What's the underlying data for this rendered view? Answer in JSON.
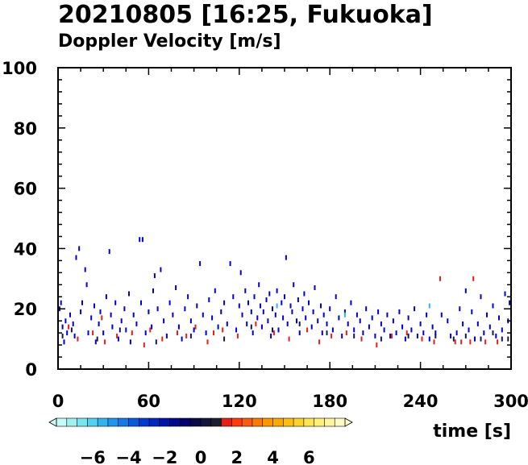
{
  "chart_data": {
    "type": "scatter",
    "title": "20210805 [16:25, Fukuoka]",
    "subtitle": "Doppler Velocity [m/s]",
    "xlabel": "time [s]",
    "ylabel": "",
    "xlim": [
      0,
      300
    ],
    "ylim": [
      0,
      100
    ],
    "x_ticks": [
      "0",
      "60",
      "120",
      "180",
      "240",
      "300"
    ],
    "y_ticks": [
      "0",
      "20",
      "40",
      "60",
      "80",
      "100"
    ],
    "grid": false,
    "colorbar": {
      "range": [
        -8,
        8
      ],
      "tick_labels": [
        "−6",
        "−4",
        "−2",
        "0",
        "2",
        "4",
        "6"
      ],
      "tick_values": [
        -6,
        -4,
        -2,
        0,
        2,
        4,
        6
      ],
      "colors": [
        "#c8fafa",
        "#a0f0f0",
        "#78e6f0",
        "#50d2f0",
        "#32b4f0",
        "#1e96f0",
        "#1478e6",
        "#0a5adc",
        "#003cd2",
        "#0028be",
        "#0014aa",
        "#000a8c",
        "#00006e",
        "#0a0a4b",
        "#14143c",
        "#1e1e32",
        "#e61e14",
        "#ff3c0a",
        "#ff5a0a",
        "#ff7800",
        "#ff9600",
        "#ffaa00",
        "#ffbe14",
        "#ffd228",
        "#ffe650",
        "#fff078",
        "#fff5a0",
        "#fffac8"
      ]
    },
    "series": [
      {
        "color": "#0000d2",
        "points": [
          [
            1,
            20
          ],
          [
            2,
            22
          ],
          [
            3,
            14
          ],
          [
            4,
            9
          ],
          [
            5,
            16
          ],
          [
            6,
            12
          ],
          [
            8,
            18
          ],
          [
            10,
            15
          ],
          [
            11,
            11
          ],
          [
            12,
            37
          ],
          [
            14,
            40
          ],
          [
            15,
            19
          ],
          [
            16,
            22
          ],
          [
            18,
            33
          ],
          [
            19,
            28
          ],
          [
            20,
            12
          ],
          [
            22,
            17
          ],
          [
            24,
            21
          ],
          [
            25,
            9
          ],
          [
            27,
            15
          ],
          [
            28,
            19
          ],
          [
            30,
            12
          ],
          [
            32,
            24
          ],
          [
            34,
            39
          ],
          [
            35,
            18
          ],
          [
            36,
            14
          ],
          [
            38,
            22
          ],
          [
            40,
            10
          ],
          [
            42,
            16
          ],
          [
            44,
            20
          ],
          [
            45,
            13
          ],
          [
            47,
            25
          ],
          [
            48,
            9
          ],
          [
            50,
            18
          ],
          [
            52,
            15
          ],
          [
            54,
            43
          ],
          [
            56,
            43
          ],
          [
            55,
            22
          ],
          [
            58,
            12
          ],
          [
            60,
            19
          ],
          [
            62,
            14
          ],
          [
            63,
            26
          ],
          [
            64,
            31
          ],
          [
            66,
            20
          ],
          [
            68,
            33
          ],
          [
            70,
            16
          ],
          [
            72,
            11
          ],
          [
            74,
            22
          ],
          [
            76,
            18
          ],
          [
            78,
            27
          ],
          [
            80,
            14
          ],
          [
            82,
            10
          ],
          [
            84,
            20
          ],
          [
            86,
            24
          ],
          [
            88,
            16
          ],
          [
            90,
            13
          ],
          [
            92,
            21
          ],
          [
            94,
            35
          ],
          [
            96,
            18
          ],
          [
            98,
            12
          ],
          [
            100,
            23
          ],
          [
            102,
            17
          ],
          [
            104,
            26
          ],
          [
            106,
            14
          ],
          [
            108,
            19
          ],
          [
            110,
            22
          ],
          [
            112,
            15
          ],
          [
            114,
            35
          ],
          [
            116,
            24
          ],
          [
            118,
            13
          ],
          [
            120,
            21
          ],
          [
            121,
            32
          ],
          [
            122,
            18
          ],
          [
            124,
            26
          ],
          [
            125,
            15
          ],
          [
            126,
            22
          ],
          [
            128,
            19
          ],
          [
            129,
            12
          ],
          [
            130,
            24
          ],
          [
            132,
            17
          ],
          [
            133,
            28
          ],
          [
            134,
            21
          ],
          [
            135,
            14
          ],
          [
            136,
            19
          ],
          [
            138,
            23
          ],
          [
            139,
            16
          ],
          [
            140,
            25
          ],
          [
            141,
            11
          ],
          [
            142,
            20
          ],
          [
            144,
            18
          ],
          [
            145,
            26
          ],
          [
            146,
            13
          ],
          [
            148,
            22
          ],
          [
            149,
            17
          ],
          [
            150,
            24
          ],
          [
            151,
            37
          ],
          [
            152,
            15
          ],
          [
            154,
            21
          ],
          [
            155,
            19
          ],
          [
            156,
            28
          ],
          [
            158,
            16
          ],
          [
            159,
            23
          ],
          [
            160,
            12
          ],
          [
            162,
            20
          ],
          [
            163,
            25
          ],
          [
            164,
            17
          ],
          [
            166,
            22
          ],
          [
            168,
            14
          ],
          [
            169,
            19
          ],
          [
            170,
            27
          ],
          [
            172,
            16
          ],
          [
            174,
            21
          ],
          [
            175,
            12
          ],
          [
            176,
            18
          ],
          [
            178,
            15
          ],
          [
            180,
            20
          ],
          [
            182,
            13
          ],
          [
            184,
            24
          ],
          [
            186,
            17
          ],
          [
            188,
            11
          ],
          [
            190,
            19
          ],
          [
            192,
            15
          ],
          [
            194,
            22
          ],
          [
            196,
            13
          ],
          [
            198,
            18
          ],
          [
            200,
            16
          ],
          [
            202,
            12
          ],
          [
            204,
            20
          ],
          [
            206,
            14
          ],
          [
            208,
            17
          ],
          [
            210,
            11
          ],
          [
            212,
            19
          ],
          [
            214,
            15
          ],
          [
            216,
            13
          ],
          [
            218,
            18
          ],
          [
            220,
            11
          ],
          [
            222,
            16
          ],
          [
            224,
            12
          ],
          [
            226,
            19
          ],
          [
            228,
            14
          ],
          [
            230,
            10
          ],
          [
            232,
            17
          ],
          [
            234,
            13
          ],
          [
            236,
            20
          ],
          [
            238,
            11
          ],
          [
            240,
            15
          ],
          [
            242,
            12
          ],
          [
            244,
            18
          ],
          [
            246,
            10
          ],
          [
            248,
            14
          ],
          [
            250,
            12
          ],
          [
            254,
            18
          ],
          [
            258,
            16
          ],
          [
            260,
            11
          ],
          [
            264,
            12
          ],
          [
            266,
            20
          ],
          [
            268,
            15
          ],
          [
            270,
            26
          ],
          [
            272,
            13
          ],
          [
            274,
            19
          ],
          [
            276,
            10
          ],
          [
            278,
            15
          ],
          [
            280,
            24
          ],
          [
            282,
            12
          ],
          [
            284,
            18
          ],
          [
            286,
            14
          ],
          [
            288,
            21
          ],
          [
            290,
            11
          ],
          [
            292,
            17
          ],
          [
            294,
            13
          ],
          [
            296,
            25
          ],
          [
            298,
            16
          ],
          [
            299,
            22
          ]
        ]
      },
      {
        "color": "#14145a",
        "points": [
          [
            3,
            11
          ],
          [
            9,
            13
          ],
          [
            26,
            10
          ],
          [
            41,
            13
          ],
          [
            65,
            9
          ],
          [
            88,
            11
          ],
          [
            110,
            10
          ],
          [
            128,
            14
          ],
          [
            142,
            13
          ],
          [
            160,
            15
          ],
          [
            178,
            12
          ],
          [
            196,
            11
          ],
          [
            214,
            10
          ],
          [
            232,
            11
          ],
          [
            250,
            11
          ],
          [
            262,
            10
          ],
          [
            270,
            11
          ],
          [
            280,
            10
          ],
          [
            288,
            12
          ],
          [
            294,
            10
          ],
          [
            298,
            10
          ]
        ]
      },
      {
        "color": "#32b4f0",
        "points": [
          [
            145,
            21
          ],
          [
            190,
            18
          ],
          [
            246,
            21
          ]
        ]
      },
      {
        "color": "#e61e14",
        "points": [
          [
            7,
            14
          ],
          [
            13,
            10
          ],
          [
            23,
            12
          ],
          [
            29,
            17
          ],
          [
            31,
            9
          ],
          [
            39,
            11
          ],
          [
            49,
            12
          ],
          [
            57,
            8
          ],
          [
            61,
            13
          ],
          [
            69,
            10
          ],
          [
            79,
            12
          ],
          [
            85,
            11
          ],
          [
            91,
            14
          ],
          [
            99,
            9
          ],
          [
            103,
            12
          ],
          [
            109,
            13
          ],
          [
            119,
            11
          ],
          [
            131,
            15
          ],
          [
            143,
            12
          ],
          [
            153,
            10
          ],
          [
            165,
            13
          ],
          [
            173,
            9
          ],
          [
            181,
            11
          ],
          [
            191,
            12
          ],
          [
            201,
            10
          ],
          [
            211,
            8
          ],
          [
            221,
            11
          ],
          [
            231,
            12
          ],
          [
            241,
            10
          ],
          [
            249,
            9
          ],
          [
            253,
            30
          ],
          [
            263,
            9
          ],
          [
            267,
            9
          ],
          [
            273,
            9
          ],
          [
            275,
            30
          ],
          [
            283,
            9
          ],
          [
            291,
            9
          ]
        ]
      }
    ]
  }
}
